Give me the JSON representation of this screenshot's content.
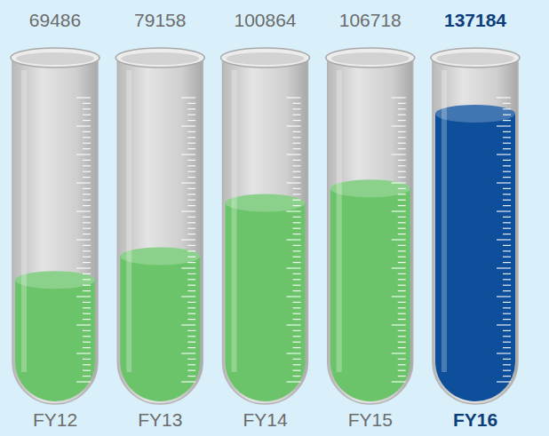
{
  "chart_data": {
    "type": "bar",
    "categories": [
      "FY12",
      "FY13",
      "FY14",
      "FY15",
      "FY16"
    ],
    "values": [
      69486,
      79158,
      100864,
      106718,
      137184
    ],
    "colors": [
      "#6cc46a",
      "#6cc46a",
      "#6cc46a",
      "#6cc46a",
      "#0d4f9a"
    ],
    "ylim": [
      20000,
      160000
    ],
    "data_labels": true,
    "tick_labels": false
  }
}
